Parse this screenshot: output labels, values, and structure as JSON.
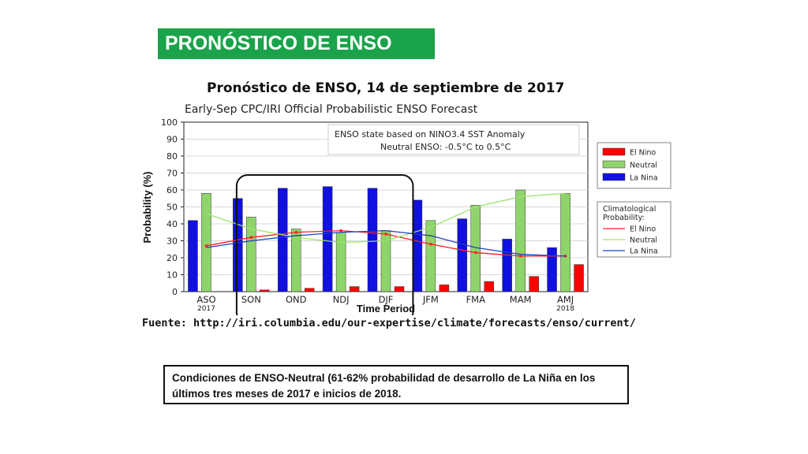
{
  "slide_title": "PRONÓSTICO DE ENSO",
  "colors": {
    "banner": "#1aa34a",
    "el_nino": "#ff0000",
    "neutral": "#8fd46a",
    "la_nina": "#1010e0",
    "clim_el_nino": "#ff2020",
    "clim_neutral": "#9ee36b",
    "clim_la_nina": "#2040c0"
  },
  "chart_data": {
    "type": "bar",
    "title": "Pronóstico de ENSO, 14 de septiembre de 2017",
    "subtitle": "Early-Sep CPC/IRI Official Probabilistic ENSO Forecast",
    "xlabel": "Time Period",
    "ylabel": "Probability (%)",
    "ylim": [
      0,
      100
    ],
    "yticks": [
      0,
      10,
      20,
      30,
      40,
      50,
      60,
      70,
      80,
      90,
      100
    ],
    "categories": [
      "ASO",
      "SON",
      "OND",
      "NDJ",
      "DJF",
      "JFM",
      "FMA",
      "MAM",
      "AMJ"
    ],
    "year_labels": {
      "ASO": "2017",
      "AMJ": "2018"
    },
    "series": [
      {
        "name": "La Nina",
        "values": [
          42,
          55,
          61,
          62,
          61,
          54,
          43,
          31,
          26
        ]
      },
      {
        "name": "Neutral",
        "values": [
          58,
          44,
          37,
          35,
          36,
          42,
          51,
          60,
          58
        ]
      },
      {
        "name": "El Nino",
        "values": [
          0,
          1,
          2,
          3,
          3,
          4,
          6,
          9,
          16
        ]
      }
    ],
    "climatology": [
      {
        "name": "El Nino",
        "values": [
          27,
          32,
          35,
          36,
          34,
          28,
          23,
          21,
          21
        ]
      },
      {
        "name": "Neutral",
        "values": [
          46,
          37,
          32,
          29,
          30,
          38,
          50,
          56,
          58
        ]
      },
      {
        "name": "La Nina",
        "values": [
          26,
          30,
          33,
          35,
          36,
          33,
          26,
          22,
          21
        ]
      }
    ],
    "annotation_lines": [
      "ENSO state based on NINO3.4 SST Anomaly",
      "Neutral ENSO: -0.5°C to 0.5°C"
    ],
    "legend_title": "Climatological Probability:",
    "legend_bars": [
      "El Nino",
      "Neutral",
      "La Nina"
    ],
    "legend_lines": [
      "El Nino",
      "Neutral",
      "La Nina"
    ],
    "highlight": [
      "SON",
      "OND",
      "NDJ",
      "DJF"
    ]
  },
  "source": "Fuente: http://iri.columbia.edu/our-expertise/climate/forecasts/enso/current/",
  "note": "Condiciones de ENSO-Neutral (61-62% probabilidad de desarrollo de La Niña en los últimos tres meses de 2017 e inicios de 2018."
}
